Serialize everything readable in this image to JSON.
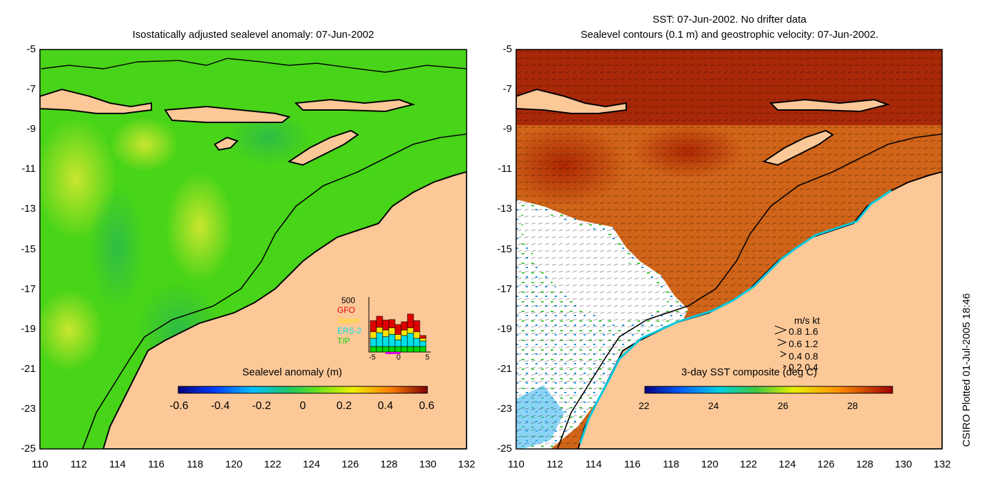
{
  "left_panel": {
    "title": "Isostatically adjusted sealevel anomaly: 07-Jun-2002",
    "colorbar": {
      "label": "Sealevel anomaly (m)",
      "ticks": [
        "-0.6",
        "-0.4",
        "-0.2",
        "0",
        "0.2",
        "0.4",
        "0.6"
      ]
    },
    "inset_histogram": {
      "ymax_label": "500",
      "legend": [
        {
          "name": "GFO",
          "color": "#e00000"
        },
        {
          "name": "Jason",
          "color": "#ffe400"
        },
        {
          "name": "ERS-2",
          "color": "#00e0e8"
        },
        {
          "name": "T/P",
          "color": "#00d800"
        }
      ],
      "x_ticks": [
        "-5",
        "0",
        "5"
      ],
      "bars": [
        {
          "tp": 0.1,
          "ers": 0.15,
          "jason": 0.12,
          "gfo": 0.2
        },
        {
          "tp": 0.1,
          "ers": 0.25,
          "jason": 0.1,
          "gfo": 0.2
        },
        {
          "tp": 0.1,
          "ers": 0.18,
          "jason": 0.12,
          "gfo": 0.18
        },
        {
          "tp": 0.1,
          "ers": 0.22,
          "jason": 0.12,
          "gfo": 0.15
        },
        {
          "tp": 0.1,
          "ers": 0.12,
          "jason": 0.1,
          "gfo": 0.18
        },
        {
          "tp": 0.1,
          "ers": 0.2,
          "jason": 0.1,
          "gfo": 0.15
        },
        {
          "tp": 0.1,
          "ers": 0.24,
          "jason": 0.1,
          "gfo": 0.25
        },
        {
          "tp": 0.1,
          "ers": 0.15,
          "jason": 0.12,
          "gfo": 0.2
        },
        {
          "tp": 0.1,
          "ers": 0.1,
          "jason": 0.05,
          "gfo": 0.05
        }
      ]
    }
  },
  "right_panel": {
    "title_line1": "SST: 07-Jun-2002. No drifter data",
    "title_line2": "Sealevel contours (0.1 m) and geostrophic velocity: 07-Jun-2002.",
    "colorbar": {
      "label": "3-day SST composite (deg C)",
      "ticks": [
        "22",
        "24",
        "26",
        "28"
      ]
    },
    "velocity_legend": {
      "header": "m/s  kt",
      "rows": [
        "0.8  1.6",
        "0.6  1.2",
        "0.4  0.8",
        "0.2  0.4"
      ]
    }
  },
  "axes": {
    "lat_ticks": [
      "-5",
      "-7",
      "-9",
      "-11",
      "-13",
      "-15",
      "-17",
      "-19",
      "-21",
      "-23",
      "-25"
    ],
    "lon_ticks": [
      "110",
      "112",
      "114",
      "116",
      "118",
      "120",
      "122",
      "124",
      "126",
      "128",
      "130",
      "132"
    ]
  },
  "footer": {
    "stamp": "CSIRO Plotted 01-Jul-2005 18:46"
  },
  "colors": {
    "land": "#fcc898",
    "ocean_left": "#48d418",
    "sst_hot": "#b83000",
    "sst_mid": "#d86418",
    "cloud": "#ffffff"
  }
}
